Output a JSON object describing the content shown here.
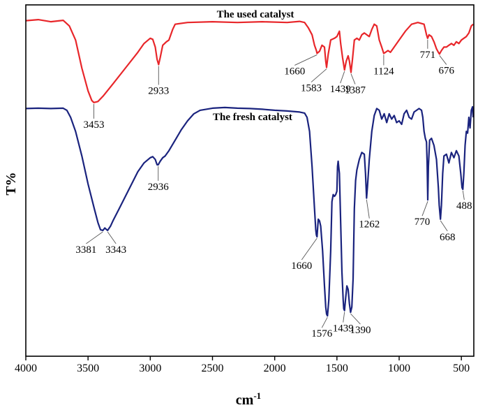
{
  "chart_data": {
    "type": "line",
    "xlabel": "cm",
    "xlabel_sup": "-1",
    "ylabel": "T%",
    "xlim": [
      4000,
      400
    ],
    "x_reversed": true,
    "ylim": [
      0,
      100
    ],
    "grid": false,
    "legend": "none",
    "x_ticks": [
      4000,
      3500,
      3000,
      2500,
      2000,
      1500,
      1000,
      500
    ],
    "series": [
      {
        "name": "The used catalyst",
        "color": "#e8262a",
        "points": [
          [
            4000,
            95.5
          ],
          [
            3900,
            95.8
          ],
          [
            3800,
            95.2
          ],
          [
            3700,
            95.6
          ],
          [
            3650,
            94.0
          ],
          [
            3600,
            90.0
          ],
          [
            3550,
            82.0
          ],
          [
            3500,
            75.5
          ],
          [
            3470,
            72.8
          ],
          [
            3453,
            72.2
          ],
          [
            3420,
            72.5
          ],
          [
            3380,
            74.0
          ],
          [
            3300,
            77.5
          ],
          [
            3200,
            82.0
          ],
          [
            3100,
            86.5
          ],
          [
            3050,
            89.0
          ],
          [
            3000,
            90.5
          ],
          [
            2980,
            90.2
          ],
          [
            2960,
            88.0
          ],
          [
            2945,
            84.5
          ],
          [
            2933,
            83.0
          ],
          [
            2920,
            85.0
          ],
          [
            2900,
            88.5
          ],
          [
            2870,
            89.5
          ],
          [
            2850,
            90.0
          ],
          [
            2820,
            93.0
          ],
          [
            2800,
            94.5
          ],
          [
            2700,
            95.0
          ],
          [
            2500,
            95.2
          ],
          [
            2300,
            95.0
          ],
          [
            2100,
            95.2
          ],
          [
            1900,
            95.0
          ],
          [
            1800,
            95.3
          ],
          [
            1760,
            95.0
          ],
          [
            1730,
            93.5
          ],
          [
            1700,
            91.5
          ],
          [
            1680,
            88.5
          ],
          [
            1665,
            87.0
          ],
          [
            1660,
            86.2
          ],
          [
            1640,
            86.8
          ],
          [
            1620,
            88.5
          ],
          [
            1600,
            88.0
          ],
          [
            1590,
            84.0
          ],
          [
            1583,
            82.2
          ],
          [
            1570,
            86.0
          ],
          [
            1550,
            90.0
          ],
          [
            1520,
            90.5
          ],
          [
            1500,
            91.0
          ],
          [
            1480,
            92.5
          ],
          [
            1470,
            89.0
          ],
          [
            1455,
            85.0
          ],
          [
            1439,
            81.5
          ],
          [
            1425,
            84.0
          ],
          [
            1410,
            85.5
          ],
          [
            1400,
            84.0
          ],
          [
            1387,
            80.8
          ],
          [
            1375,
            84.5
          ],
          [
            1360,
            90.0
          ],
          [
            1340,
            90.5
          ],
          [
            1320,
            90.0
          ],
          [
            1300,
            91.5
          ],
          [
            1280,
            92.0
          ],
          [
            1260,
            91.5
          ],
          [
            1240,
            91.0
          ],
          [
            1220,
            93.0
          ],
          [
            1200,
            94.5
          ],
          [
            1180,
            94.0
          ],
          [
            1160,
            90.0
          ],
          [
            1140,
            88.0
          ],
          [
            1124,
            86.2
          ],
          [
            1110,
            86.5
          ],
          [
            1090,
            87.0
          ],
          [
            1070,
            86.5
          ],
          [
            1050,
            87.5
          ],
          [
            1000,
            90.0
          ],
          [
            950,
            92.5
          ],
          [
            900,
            94.5
          ],
          [
            850,
            95.0
          ],
          [
            800,
            94.5
          ],
          [
            790,
            93.0
          ],
          [
            780,
            91.5
          ],
          [
            771,
            90.5
          ],
          [
            760,
            91.5
          ],
          [
            740,
            91.0
          ],
          [
            720,
            89.5
          ],
          [
            700,
            87.5
          ],
          [
            685,
            86.5
          ],
          [
            676,
            86.0
          ],
          [
            660,
            87.0
          ],
          [
            640,
            88.0
          ],
          [
            620,
            88.0
          ],
          [
            600,
            88.5
          ],
          [
            580,
            89.0
          ],
          [
            560,
            88.5
          ],
          [
            540,
            89.5
          ],
          [
            520,
            89.0
          ],
          [
            500,
            90.0
          ],
          [
            480,
            90.5
          ],
          [
            460,
            91.0
          ],
          [
            440,
            92.0
          ],
          [
            420,
            94.0
          ],
          [
            405,
            94.5
          ]
        ]
      },
      {
        "name": "The fresh catalyst",
        "color": "#1a237e",
        "points": [
          [
            4000,
            70.5
          ],
          [
            3900,
            70.6
          ],
          [
            3800,
            70.5
          ],
          [
            3700,
            70.6
          ],
          [
            3670,
            70.0
          ],
          [
            3640,
            68.0
          ],
          [
            3600,
            64.0
          ],
          [
            3550,
            57.0
          ],
          [
            3500,
            49.0
          ],
          [
            3450,
            42.0
          ],
          [
            3420,
            38.0
          ],
          [
            3400,
            36.0
          ],
          [
            3381,
            35.8
          ],
          [
            3365,
            36.5
          ],
          [
            3350,
            36.0
          ],
          [
            3343,
            35.8
          ],
          [
            3320,
            37.0
          ],
          [
            3300,
            38.5
          ],
          [
            3250,
            42.0
          ],
          [
            3200,
            45.5
          ],
          [
            3150,
            49.0
          ],
          [
            3100,
            52.5
          ],
          [
            3050,
            55.0
          ],
          [
            3000,
            56.5
          ],
          [
            2980,
            56.8
          ],
          [
            2960,
            56.0
          ],
          [
            2945,
            54.5
          ],
          [
            2936,
            54.5
          ],
          [
            2920,
            55.5
          ],
          [
            2900,
            56.5
          ],
          [
            2880,
            57.0
          ],
          [
            2850,
            58.5
          ],
          [
            2800,
            61.5
          ],
          [
            2750,
            64.5
          ],
          [
            2700,
            67.0
          ],
          [
            2650,
            69.0
          ],
          [
            2600,
            70.0
          ],
          [
            2500,
            70.6
          ],
          [
            2400,
            70.8
          ],
          [
            2300,
            70.6
          ],
          [
            2200,
            70.5
          ],
          [
            2100,
            70.3
          ],
          [
            2000,
            70.0
          ],
          [
            1900,
            69.8
          ],
          [
            1800,
            69.5
          ],
          [
            1760,
            69.2
          ],
          [
            1740,
            68.0
          ],
          [
            1720,
            64.0
          ],
          [
            1700,
            54.0
          ],
          [
            1680,
            42.0
          ],
          [
            1670,
            36.0
          ],
          [
            1665,
            34.5
          ],
          [
            1660,
            34.0
          ],
          [
            1650,
            39.0
          ],
          [
            1640,
            38.5
          ],
          [
            1630,
            37.0
          ],
          [
            1615,
            30.0
          ],
          [
            1600,
            20.0
          ],
          [
            1590,
            14.0
          ],
          [
            1583,
            12.0
          ],
          [
            1576,
            11.5
          ],
          [
            1565,
            16.0
          ],
          [
            1550,
            30.0
          ],
          [
            1540,
            44.0
          ],
          [
            1530,
            46.0
          ],
          [
            1520,
            45.5
          ],
          [
            1510,
            46.0
          ],
          [
            1500,
            47.0
          ],
          [
            1495,
            54.0
          ],
          [
            1490,
            55.5
          ],
          [
            1480,
            52.0
          ],
          [
            1470,
            38.0
          ],
          [
            1460,
            24.0
          ],
          [
            1450,
            16.0
          ],
          [
            1445,
            13.5
          ],
          [
            1439,
            13.0
          ],
          [
            1430,
            16.5
          ],
          [
            1420,
            20.0
          ],
          [
            1410,
            19.0
          ],
          [
            1400,
            15.0
          ],
          [
            1390,
            12.5
          ],
          [
            1380,
            14.0
          ],
          [
            1370,
            22.0
          ],
          [
            1360,
            42.0
          ],
          [
            1350,
            50.0
          ],
          [
            1340,
            53.0
          ],
          [
            1320,
            56.0
          ],
          [
            1300,
            58.0
          ],
          [
            1280,
            57.5
          ],
          [
            1270,
            52.0
          ],
          [
            1262,
            45.0
          ],
          [
            1255,
            48.0
          ],
          [
            1240,
            56.0
          ],
          [
            1220,
            64.0
          ],
          [
            1200,
            68.5
          ],
          [
            1180,
            70.5
          ],
          [
            1160,
            70.0
          ],
          [
            1140,
            67.5
          ],
          [
            1120,
            69.0
          ],
          [
            1100,
            66.5
          ],
          [
            1080,
            69.0
          ],
          [
            1060,
            67.5
          ],
          [
            1040,
            68.5
          ],
          [
            1020,
            66.5
          ],
          [
            1000,
            67.0
          ],
          [
            980,
            66.0
          ],
          [
            960,
            69.0
          ],
          [
            940,
            70.0
          ],
          [
            920,
            68.0
          ],
          [
            900,
            67.5
          ],
          [
            880,
            69.5
          ],
          [
            860,
            70.0
          ],
          [
            840,
            70.5
          ],
          [
            820,
            70.0
          ],
          [
            810,
            68.0
          ],
          [
            800,
            64.0
          ],
          [
            790,
            62.0
          ],
          [
            780,
            61.0
          ],
          [
            775,
            55.0
          ],
          [
            770,
            44.5
          ],
          [
            765,
            54.0
          ],
          [
            755,
            61.5
          ],
          [
            740,
            62.0
          ],
          [
            720,
            60.0
          ],
          [
            700,
            56.0
          ],
          [
            685,
            48.0
          ],
          [
            678,
            43.0
          ],
          [
            668,
            39.0
          ],
          [
            660,
            43.0
          ],
          [
            650,
            52.0
          ],
          [
            640,
            57.0
          ],
          [
            620,
            57.5
          ],
          [
            600,
            55.0
          ],
          [
            580,
            58.0
          ],
          [
            560,
            56.5
          ],
          [
            540,
            58.5
          ],
          [
            520,
            57.0
          ],
          [
            505,
            52.0
          ],
          [
            495,
            48.0
          ],
          [
            488,
            47.5
          ],
          [
            480,
            52.0
          ],
          [
            470,
            60.0
          ],
          [
            460,
            64.0
          ],
          [
            450,
            63.5
          ],
          [
            440,
            68.0
          ],
          [
            430,
            65.0
          ],
          [
            420,
            70.0
          ],
          [
            410,
            71.0
          ],
          [
            405,
            68.0
          ]
        ]
      }
    ],
    "series_labels": [
      {
        "series": 0,
        "text": "The used catalyst"
      },
      {
        "series": 1,
        "text": "The fresh catalyst"
      }
    ],
    "annotations": [
      {
        "series": 0,
        "text": "3453",
        "x": 3453
      },
      {
        "series": 0,
        "text": "2933",
        "x": 2933
      },
      {
        "series": 0,
        "text": "1660",
        "x": 1660
      },
      {
        "series": 0,
        "text": "1583",
        "x": 1583
      },
      {
        "series": 0,
        "text": "1439",
        "x": 1439
      },
      {
        "series": 0,
        "text": "1387",
        "x": 1387
      },
      {
        "series": 0,
        "text": "1124",
        "x": 1124
      },
      {
        "series": 0,
        "text": "771",
        "x": 771
      },
      {
        "series": 0,
        "text": "676",
        "x": 676
      },
      {
        "series": 1,
        "text": "3381",
        "x": 3381
      },
      {
        "series": 1,
        "text": "3343",
        "x": 3343
      },
      {
        "series": 1,
        "text": "2936",
        "x": 2936
      },
      {
        "series": 1,
        "text": "1660",
        "x": 1660
      },
      {
        "series": 1,
        "text": "1576",
        "x": 1576
      },
      {
        "series": 1,
        "text": "1439",
        "x": 1439
      },
      {
        "series": 1,
        "text": "1390",
        "x": 1390
      },
      {
        "series": 1,
        "text": "1262",
        "x": 1262
      },
      {
        "series": 1,
        "text": "770",
        "x": 770
      },
      {
        "series": 1,
        "text": "668",
        "x": 668
      },
      {
        "series": 1,
        "text": "488",
        "x": 488
      }
    ]
  }
}
